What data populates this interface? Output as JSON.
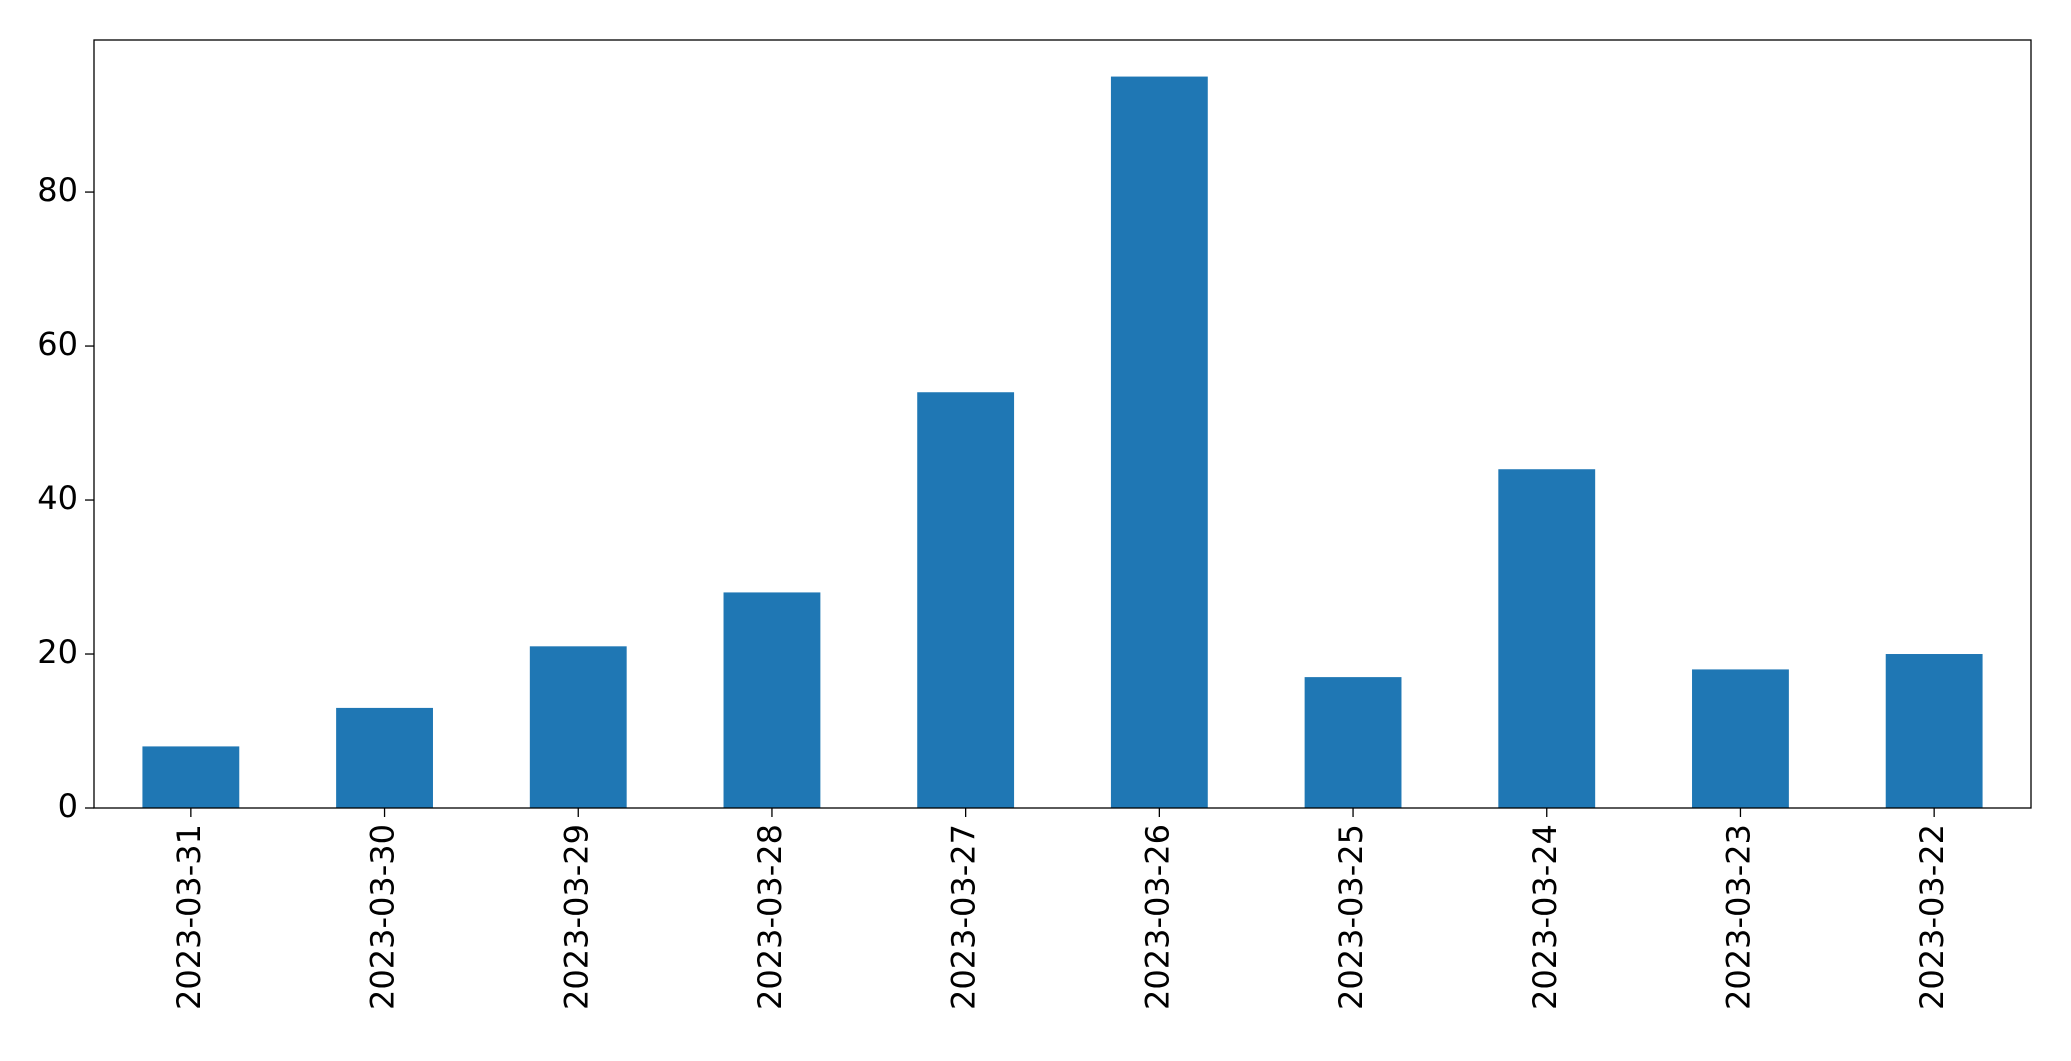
{
  "chart_data": {
    "type": "bar",
    "categories": [
      "2023-03-31",
      "2023-03-30",
      "2023-03-29",
      "2023-03-28",
      "2023-03-27",
      "2023-03-26",
      "2023-03-25",
      "2023-03-24",
      "2023-03-23",
      "2023-03-22"
    ],
    "values": [
      8,
      13,
      21,
      28,
      54,
      95,
      17,
      44,
      18,
      20
    ],
    "color": "#1f77b4",
    "ylim": [
      0,
      99.75
    ],
    "yticks": [
      0,
      20,
      40,
      60,
      80
    ],
    "grid": false
  }
}
